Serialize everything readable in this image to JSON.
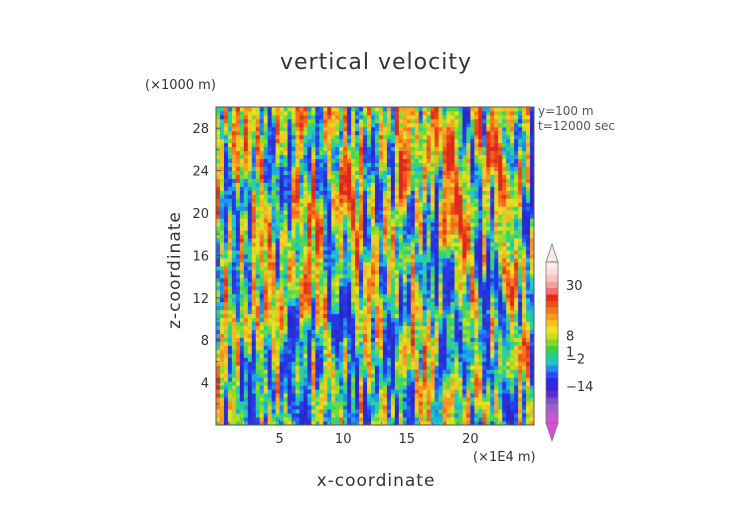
{
  "chart_data": {
    "type": "heatmap",
    "title": "vertical velocity",
    "xlabel": "x-coordinate",
    "ylabel": "z-coordinate",
    "x_unit": "(×1E4 m)",
    "y_unit": "(×1000 m)",
    "annotations": [
      "y=100 m",
      "t=12000 sec"
    ],
    "x_ticks": [
      5,
      10,
      15,
      20
    ],
    "y_ticks": [
      4,
      8,
      12,
      16,
      20,
      24,
      28
    ],
    "xlim": [
      0,
      25
    ],
    "ylim": [
      0,
      30
    ],
    "colorbar": {
      "tick_labels": [
        "30",
        "8",
        "1",
        "−2",
        "−14"
      ],
      "tick_values": [
        30,
        8,
        1,
        -2,
        -14
      ],
      "range": [
        -30,
        40
      ],
      "colors": [
        "#d64fd6",
        "#b85ec9",
        "#9c5ec8",
        "#7f4fcf",
        "#5a2fd0",
        "#3b20d4",
        "#2a2ae0",
        "#2f4af0",
        "#1f8cf0",
        "#1ac6c6",
        "#22d08a",
        "#3bd43b",
        "#8ad42a",
        "#c8e01e",
        "#f0e020",
        "#f8c020",
        "#f89a20",
        "#f07a1a",
        "#ec5018",
        "#e82a1a",
        "#f07070",
        "#f4a0a0",
        "#f8c4c4",
        "#fadcdc",
        "#fce8e8"
      ]
    },
    "field_description": "turbulent vertical velocity field, mostly green/yellow/orange with vertical blue streaks and orange patches"
  }
}
